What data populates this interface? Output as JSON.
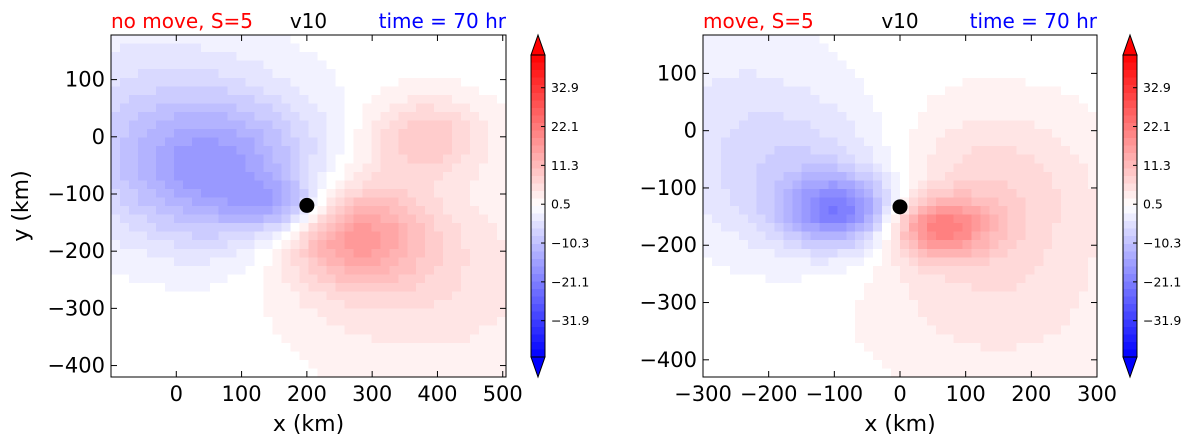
{
  "colors": {
    "title_left": "#ff0000",
    "title_center": "#000000",
    "title_right": "#0000ff",
    "cmap_min": "#0000ff",
    "cmap_mid": "#ffffff",
    "cmap_max": "#ff0000",
    "center_marker": "#000000"
  },
  "chart_data": [
    {
      "type": "heatmap",
      "title_left": "no move, S=5",
      "title_center": "v10",
      "title_right": "time = 70 hr",
      "xlabel": "x (km)",
      "ylabel": "y (km)",
      "xlim": [
        -100,
        505
      ],
      "ylim": [
        -420,
        178
      ],
      "xticks": [
        0,
        100,
        200,
        300,
        400,
        500
      ],
      "xtick_labels": [
        "0",
        "100",
        "200",
        "300",
        "400",
        "500"
      ],
      "yticks": [
        100,
        0,
        -100,
        -200,
        -300,
        -400
      ],
      "ytick_labels": [
        "100",
        "0",
        "−100",
        "−200",
        "−300",
        "−400"
      ],
      "storm_center": [
        200,
        -120
      ],
      "features": [
        {
          "x": 60,
          "y": -60,
          "sx": 160,
          "sy": 130,
          "v": -16
        },
        {
          "x": 160,
          "y": -120,
          "sx": 70,
          "sy": 45,
          "v": -10
        },
        {
          "x": -60,
          "y": 60,
          "sx": 200,
          "sy": 160,
          "v": -4
        },
        {
          "x": 270,
          "y": -170,
          "sx": 110,
          "sy": 90,
          "v": 15
        },
        {
          "x": 380,
          "y": 0,
          "sx": 90,
          "sy": 70,
          "v": 9
        },
        {
          "x": 380,
          "y": -250,
          "sx": 200,
          "sy": 170,
          "v": 5
        }
      ],
      "colorbar": {
        "vmin": -42,
        "vmax": 42,
        "extend": "both",
        "tick_values": [
          32.9,
          22.1,
          11.3,
          0.5,
          -10.3,
          -21.1,
          -31.9
        ],
        "tick_labels": [
          "32.9",
          "22.1",
          "11.3",
          "0.5",
          "−10.3",
          "−21.1",
          "−31.9"
        ]
      }
    },
    {
      "type": "heatmap",
      "title_left": "move, S=5",
      "title_center": "v10",
      "title_right": "time = 70 hr",
      "xlabel": "x (km)",
      "ylabel": "",
      "xlim": [
        -300,
        300
      ],
      "ylim": [
        -430,
        167
      ],
      "xticks": [
        -300,
        -200,
        -100,
        0,
        100,
        200,
        300
      ],
      "xtick_labels": [
        "−300",
        "−200",
        "−100",
        "0",
        "100",
        "200",
        "300"
      ],
      "yticks": [
        100,
        0,
        -100,
        -200,
        -300,
        -400
      ],
      "ytick_labels": [
        "100",
        "0",
        "−100",
        "−200",
        "−300",
        "−400"
      ],
      "storm_center": [
        0,
        -133
      ],
      "features": [
        {
          "x": -90,
          "y": -140,
          "sx": 80,
          "sy": 60,
          "v": -18
        },
        {
          "x": -140,
          "y": -90,
          "sx": 160,
          "sy": 130,
          "v": -7
        },
        {
          "x": -250,
          "y": 40,
          "sx": 150,
          "sy": 160,
          "v": -3
        },
        {
          "x": 60,
          "y": -170,
          "sx": 75,
          "sy": 50,
          "v": 17
        },
        {
          "x": 130,
          "y": -100,
          "sx": 170,
          "sy": 140,
          "v": 7
        },
        {
          "x": 150,
          "y": -300,
          "sx": 200,
          "sy": 150,
          "v": 4
        }
      ],
      "colorbar": {
        "vmin": -42,
        "vmax": 42,
        "extend": "both",
        "tick_values": [
          32.9,
          22.1,
          11.3,
          0.5,
          -10.3,
          -21.1,
          -31.9
        ],
        "tick_labels": [
          "32.9",
          "22.1",
          "11.3",
          "0.5",
          "−10.3",
          "−21.1",
          "−31.9"
        ]
      }
    }
  ]
}
